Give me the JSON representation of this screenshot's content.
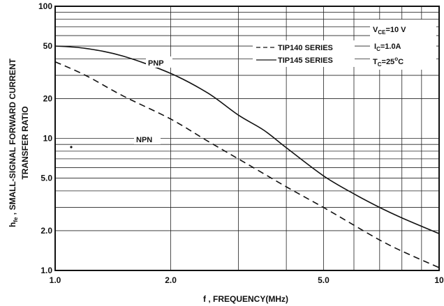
{
  "chart_data": {
    "type": "line",
    "x_scale": "log",
    "y_scale": "log",
    "xlim": [
      1.0,
      10
    ],
    "ylim": [
      1.0,
      100
    ],
    "grid": true,
    "xlabel": "f , FREQUENCY(MHz)",
    "ylabel_line1": "h",
    "ylabel_sub": "fe",
    "ylabel_line1_rest": " , SMALL-SIGNAL FORWARD CURRENT",
    "ylabel_line2": "TRANSFER RATIO",
    "x_ticks": [
      {
        "value": 1.0,
        "label": "1.0"
      },
      {
        "value": 2.0,
        "label": "2.0"
      },
      {
        "value": 5.0,
        "label": "5.0"
      },
      {
        "value": 10,
        "label": "10"
      }
    ],
    "y_ticks": [
      {
        "value": 1.0,
        "label": "1.0"
      },
      {
        "value": 2.0,
        "label": "2.0"
      },
      {
        "value": 5.0,
        "label": "5.0"
      },
      {
        "value": 10,
        "label": "10"
      },
      {
        "value": 20,
        "label": "20"
      },
      {
        "value": 50,
        "label": "50"
      },
      {
        "value": 100,
        "label": "100"
      }
    ],
    "series": [
      {
        "name": "PNP",
        "label": "PNP",
        "style": "solid",
        "color": "#111111",
        "x": [
          1.0,
          1.2,
          1.5,
          2.0,
          2.5,
          3.0,
          3.5,
          4.0,
          5.0,
          6.0,
          7.0,
          8.0,
          10.0
        ],
        "y": [
          50,
          48,
          42,
          31,
          22,
          15,
          11.5,
          8.5,
          5.2,
          3.8,
          3.0,
          2.5,
          1.9
        ]
      },
      {
        "name": "NPN",
        "label": "NPN",
        "style": "dashed",
        "color": "#111111",
        "x": [
          1.0,
          1.2,
          1.5,
          2.0,
          2.5,
          3.0,
          4.0,
          5.0,
          6.0,
          7.0,
          8.0,
          10.0
        ],
        "y": [
          38,
          30,
          21,
          14,
          9.5,
          7,
          4.3,
          3.0,
          2.2,
          1.7,
          1.4,
          1.05
        ]
      }
    ],
    "annotations": {
      "pnp_label": "PNP",
      "npn_label": "NPN",
      "legend_dashed": "TIP140 SERIES",
      "legend_solid": "TIP145 SERIES",
      "cond_vce_main": "V",
      "cond_vce_sub": "CE",
      "cond_vce_val": "=10 V",
      "cond_ic_main": "I",
      "cond_ic_sub": "C",
      "cond_ic_val": "=1.0A",
      "cond_tc_main": "T",
      "cond_tc_sub": "C",
      "cond_tc_val": "=25",
      "cond_tc_unit": "C",
      "cond_tc_deg": "o"
    }
  }
}
